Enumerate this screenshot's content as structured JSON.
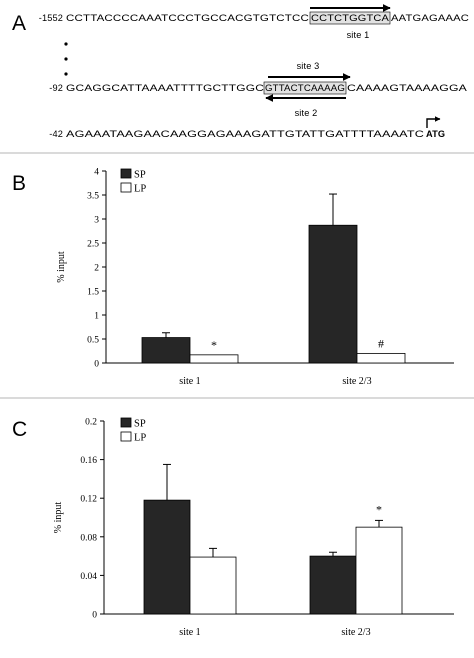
{
  "panel_a": {
    "letter": "A",
    "lines": [
      {
        "num": "-1552",
        "pre": "CCTTACCCCAAATCCCTGCCACGTGTCTCC",
        "box": "CCTCTGGTCA",
        "post": "AATGAGAAAC"
      },
      {
        "num": "-92",
        "pre": "GCAGGCATTAAAATTTTGCTTGGC",
        "box": "GTTACTCAAAAG",
        "post": "CAAAAGTAAAAGGA"
      },
      {
        "num": "-42",
        "pre": "AGAAATAAGAACAAGGAGAAAGATTGTATTGATTTTAAAATC",
        "bold": "ATG"
      }
    ],
    "site_labels": [
      "site 1",
      "site 3",
      "site 2"
    ]
  },
  "chart_data": [
    {
      "type": "bar",
      "panel": "B",
      "categories": [
        "site 1",
        "site 2/3"
      ],
      "series": [
        {
          "name": "SP",
          "values": [
            0.53,
            2.87
          ],
          "errors": [
            0.1,
            0.65
          ],
          "fill": "#262626"
        },
        {
          "name": "LP",
          "values": [
            0.17,
            0.2
          ],
          "errors": [
            0,
            0
          ],
          "fill": "#ffffff"
        }
      ],
      "ylabel": "% input",
      "ylim": [
        0,
        4
      ],
      "yticks": [
        "0",
        "0.5",
        "1",
        "1.5",
        "2",
        "2.5",
        "3",
        "3.5",
        "4"
      ],
      "annotations": [
        "*",
        "#"
      ],
      "legend": "top-left"
    },
    {
      "type": "bar",
      "panel": "C",
      "categories": [
        "site 1",
        "site 2/3"
      ],
      "series": [
        {
          "name": "SP",
          "values": [
            0.118,
            0.06
          ],
          "errors": [
            0.037,
            0.004
          ],
          "fill": "#262626"
        },
        {
          "name": "LP",
          "values": [
            0.059,
            0.09
          ],
          "errors": [
            0.009,
            0.007
          ],
          "fill": "#ffffff"
        }
      ],
      "ylabel": "% input",
      "ylim": [
        0,
        0.2
      ],
      "yticks": [
        "0",
        "0.04",
        "0.08",
        "0.12",
        "0.16",
        "0.2"
      ],
      "annotations": [
        "",
        "*"
      ],
      "legend": "top-left"
    }
  ],
  "panel_letters": [
    "B",
    "C"
  ],
  "colors": {
    "dark_bar": "#262626",
    "light_bar": "#ffffff",
    "divider": "#b5b5b5",
    "box_shade": "#e2e2e2"
  }
}
